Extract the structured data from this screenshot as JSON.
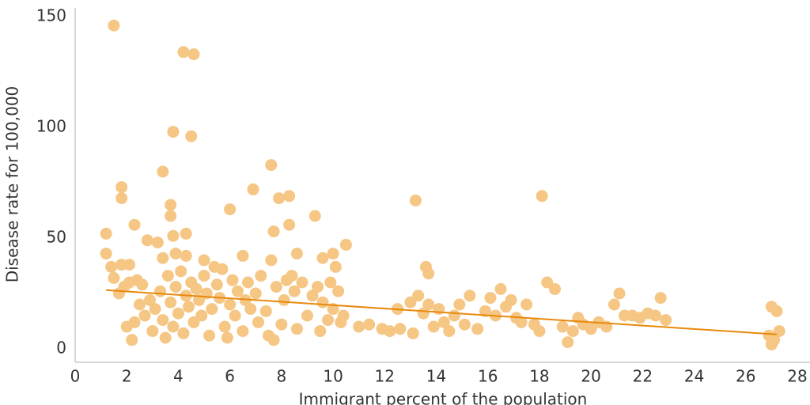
{
  "chart_data": {
    "type": "scatter",
    "x_label": "Immigrant percent of the population",
    "y_label": "Disease rate for 100,000",
    "xlim": [
      0,
      28
    ],
    "ylim": [
      -6,
      154
    ],
    "xticks": [
      0,
      2,
      4,
      6,
      8,
      10,
      12,
      14,
      16,
      18,
      20,
      22,
      24,
      26,
      28
    ],
    "yticks": [
      0,
      50,
      100,
      150
    ],
    "grid": false,
    "color": "#f5c684",
    "x": [
      1.5,
      4.2,
      4.6,
      3.8,
      4.5,
      3.4,
      7.6,
      1.8,
      1.8,
      6.9,
      8.3,
      7.9,
      3.7,
      3.7,
      6.0,
      2.3,
      9.3,
      8.3,
      7.7,
      4.3,
      1.2,
      3.8,
      2.8,
      3.2,
      10.5,
      13.2,
      18.1,
      1.2,
      3.9,
      4.3,
      3.4,
      6.5,
      8.6,
      9.6,
      10.0,
      1.4,
      1.8,
      2.1,
      7.6,
      13.6,
      13.7,
      10.1,
      5.0,
      5.4,
      1.5,
      1.7,
      1.9,
      2.1,
      2.4,
      2.6,
      2.0,
      2.2,
      2.3,
      2.5,
      2.7,
      2.9,
      3.0,
      3.1,
      3.3,
      3.4,
      3.5,
      3.6,
      3.7,
      3.8,
      3.9,
      4.0,
      4.1,
      4.2,
      4.3,
      4.4,
      4.5,
      4.6,
      4.7,
      4.8,
      4.9,
      5.0,
      5.1,
      5.2,
      5.3,
      5.5,
      5.6,
      5.7,
      5.8,
      5.9,
      6.0,
      6.1,
      6.2,
      6.3,
      6.5,
      6.6,
      6.7,
      6.8,
      7.0,
      7.1,
      7.2,
      7.4,
      7.5,
      7.7,
      7.8,
      8.0,
      8.1,
      8.2,
      8.4,
      8.5,
      8.6,
      8.8,
      9.0,
      9.2,
      9.4,
      9.5,
      9.6,
      9.8,
      9.9,
      10.0,
      10.2,
      10.3,
      10.4,
      11.0,
      11.4,
      11.9,
      12.2,
      12.5,
      12.6,
      13.0,
      13.1,
      13.3,
      13.5,
      13.7,
      13.9,
      14.1,
      14.3,
      14.5,
      14.7,
      14.9,
      15.1,
      15.3,
      15.6,
      15.9,
      16.1,
      16.3,
      16.5,
      16.7,
      16.9,
      17.1,
      17.3,
      17.5,
      17.8,
      18.0,
      18.3,
      18.6,
      18.9,
      19.1,
      19.3,
      19.5,
      19.7,
      20.0,
      20.3,
      20.6,
      20.9,
      21.1,
      21.3,
      21.6,
      21.9,
      22.2,
      22.5,
      22.7,
      22.9,
      27.0,
      27.1,
      27.2,
      27.3,
      26.9,
      27.0
    ],
    "values": [
      146,
      134,
      133,
      98,
      96,
      80,
      83,
      73,
      68,
      72,
      69,
      68,
      65,
      60,
      63,
      56,
      60,
      56,
      53,
      52,
      52,
      51,
      49,
      48,
      47,
      67,
      69,
      43,
      43,
      42,
      41,
      42,
      43,
      41,
      43,
      37,
      38,
      38,
      40,
      37,
      34,
      37,
      40,
      37,
      32,
      25,
      28,
      30,
      31,
      29,
      10,
      4,
      12,
      20,
      15,
      22,
      8,
      18,
      26,
      13,
      5,
      33,
      21,
      10,
      28,
      16,
      35,
      7,
      24,
      19,
      30,
      12,
      27,
      22,
      15,
      33,
      25,
      6,
      18,
      29,
      23,
      36,
      10,
      5,
      20,
      31,
      15,
      26,
      8,
      22,
      30,
      18,
      25,
      12,
      33,
      17,
      6,
      4,
      28,
      11,
      22,
      31,
      33,
      26,
      9,
      30,
      15,
      24,
      28,
      8,
      21,
      13,
      30,
      18,
      26,
      12,
      15,
      10,
      11,
      9,
      8,
      18,
      9,
      21,
      7,
      24,
      16,
      20,
      10,
      18,
      12,
      8,
      15,
      20,
      11,
      24,
      9,
      17,
      23,
      15,
      27,
      19,
      22,
      14,
      12,
      20,
      11,
      8,
      30,
      27,
      10,
      3,
      8,
      14,
      11,
      9,
      12,
      10,
      20,
      25,
      15,
      15,
      14,
      16,
      15,
      23,
      13,
      19,
      4,
      17,
      8,
      6,
      2
    ],
    "trendline": {
      "x": [
        1.2,
        27.2
      ],
      "y": [
        26.5,
        6.5
      ],
      "color": "#e8890c"
    }
  }
}
